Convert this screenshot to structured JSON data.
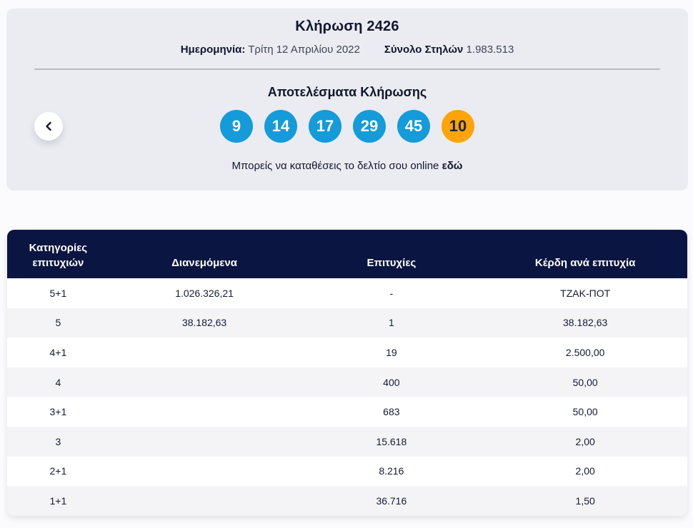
{
  "draw": {
    "title": "Κλήρωση 2426",
    "date_label": "Ημερομηνία:",
    "date_value": "Τρίτη 12 Απριλίου 2022",
    "columns_label": "Σύνολο Στηλών",
    "columns_value": "1.983.513",
    "results_title": "Αποτελέσματα Κλήρωσης",
    "numbers": [
      "9",
      "14",
      "17",
      "29",
      "45"
    ],
    "joker_number": "10",
    "cta_text": "Μπορείς να καταθέσεις το δελτίο σου online",
    "cta_link_text": "εδώ"
  },
  "colors": {
    "card_background": "#ebebf2",
    "number_ball_blue": "#149bd9",
    "joker_ball_orange": "#ffa408",
    "table_header_navy": "#0a1541",
    "table_row_alt": "#f4f4f7",
    "text_dark_navy": "#10172e"
  },
  "table": {
    "headers": [
      "Κατηγορίες επιτυχιών",
      "Διανεμόμενα",
      "Επιτυχίες",
      "Κέρδη ανά επιτυχία"
    ],
    "rows": [
      [
        "5+1",
        "1.026.326,21",
        "-",
        "ΤΖΑΚ-ΠΟΤ"
      ],
      [
        "5",
        "38.182,63",
        "1",
        "38.182,63"
      ],
      [
        "4+1",
        "",
        "19",
        "2.500,00"
      ],
      [
        "4",
        "",
        "400",
        "50,00"
      ],
      [
        "3+1",
        "",
        "683",
        "50,00"
      ],
      [
        "3",
        "",
        "15.618",
        "2,00"
      ],
      [
        "2+1",
        "",
        "8.216",
        "2,00"
      ],
      [
        "1+1",
        "",
        "36.716",
        "1,50"
      ]
    ]
  }
}
